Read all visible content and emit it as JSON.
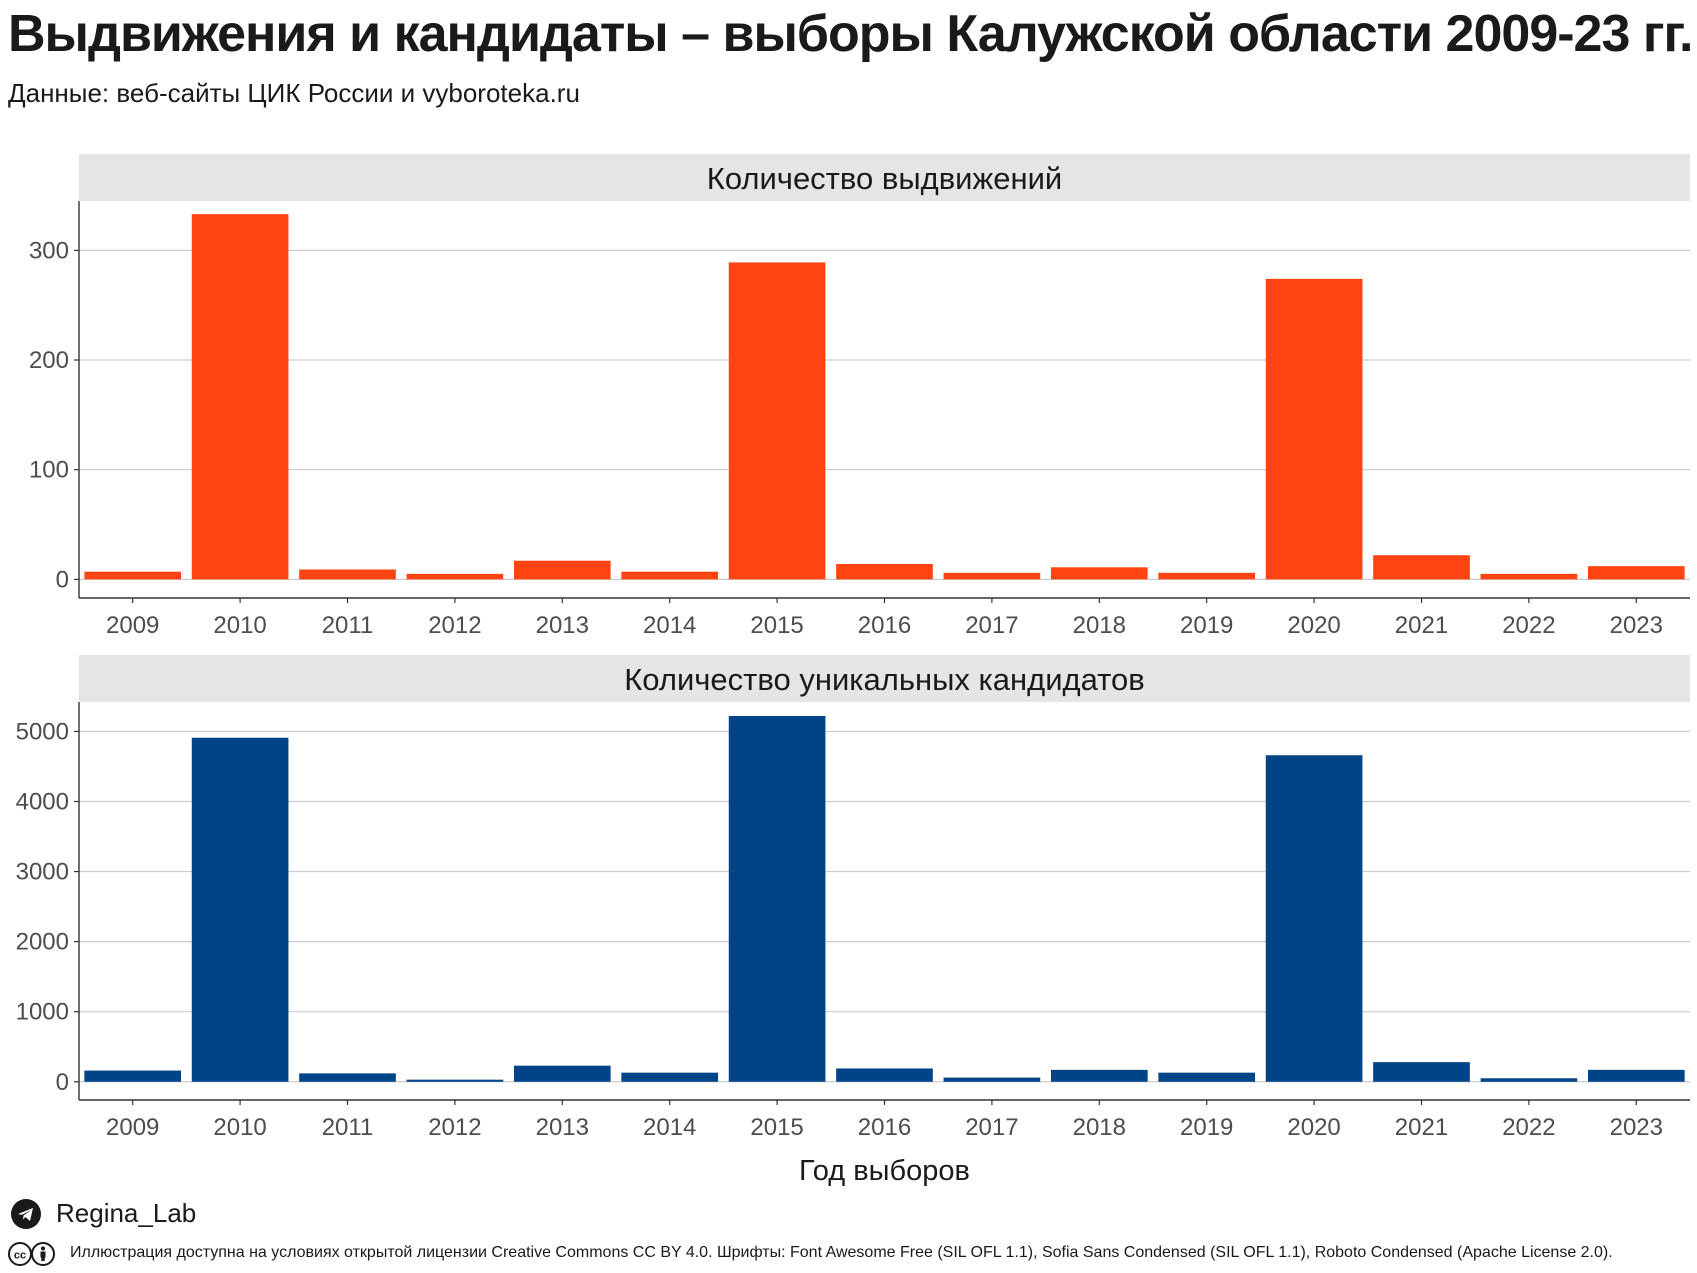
{
  "title": "Выдвижения и кандидаты – выборы Калужской области 2009-23 гг.",
  "subtitle": "Данные: веб-сайты ЦИК России и vyboroteka.ru",
  "colors": {
    "nominations": "#FF4411",
    "candidates": "#004488",
    "strip": "#E5E5E5",
    "grid": "#CCCCCC"
  },
  "chart_data": [
    {
      "type": "bar",
      "title": "Количество выдвижений",
      "xlabel": "",
      "categories": [
        "2009",
        "2010",
        "2011",
        "2012",
        "2013",
        "2014",
        "2015",
        "2016",
        "2017",
        "2018",
        "2019",
        "2020",
        "2021",
        "2022",
        "2023"
      ],
      "values": [
        7,
        333,
        9,
        5,
        17,
        7,
        289,
        14,
        6,
        11,
        6,
        274,
        22,
        5,
        12
      ],
      "yticks": [
        0,
        100,
        200,
        300
      ],
      "ylim": [
        -17,
        345
      ],
      "grid": true,
      "color": "#FF4411"
    },
    {
      "type": "bar",
      "title": "Количество уникальных кандидатов",
      "xlabel": "Год выборов",
      "categories": [
        "2009",
        "2010",
        "2011",
        "2012",
        "2013",
        "2014",
        "2015",
        "2016",
        "2017",
        "2018",
        "2019",
        "2020",
        "2021",
        "2022",
        "2023"
      ],
      "values": [
        160,
        4910,
        120,
        30,
        230,
        130,
        5220,
        190,
        60,
        170,
        130,
        4660,
        280,
        50,
        170
      ],
      "yticks": [
        0,
        1000,
        2000,
        3000,
        4000,
        5000
      ],
      "ylim": [
        -260,
        5420
      ],
      "grid": true,
      "color": "#004488"
    }
  ],
  "footer": {
    "handle": "Regina_Lab",
    "handle_icon": "telegram-icon",
    "license_icon": "creative-commons-icon",
    "license": "Иллюстрация доступна на условиях открытой лицензии Creative Commons CC BY 4.0. Шрифты: Font Awesome Free (SIL OFL 1.1), Sofia Sans Condensed (SIL OFL 1.1), Roboto Condensed (Apache License 2.0)."
  }
}
